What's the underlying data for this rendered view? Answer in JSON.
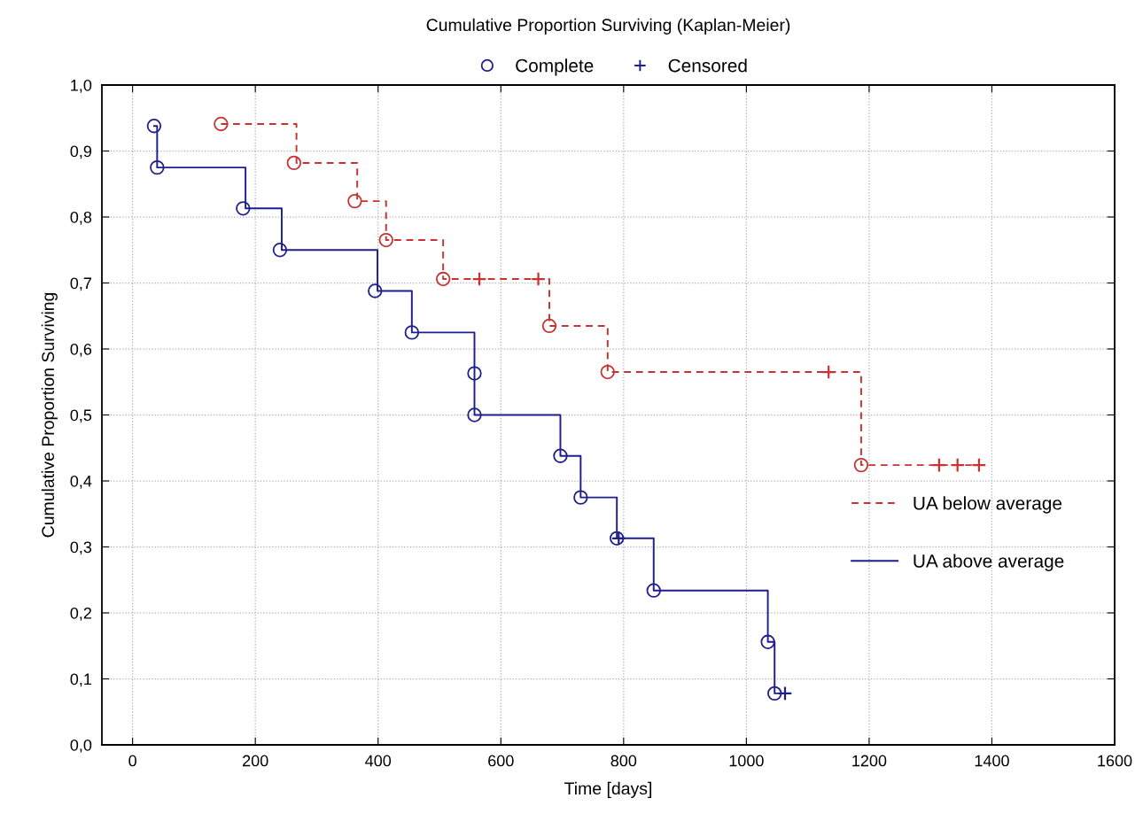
{
  "chart_data": {
    "type": "step",
    "title": "Cumulative Proportion Surviving (Kaplan-Meier)",
    "xlabel": "Time [days]",
    "ylabel": "Cumulative Proportion Surviving",
    "xlim": [
      -50,
      1600
    ],
    "xticks": [
      0,
      200,
      400,
      600,
      800,
      1000,
      1200,
      1400,
      1600
    ],
    "ylim": [
      0,
      1
    ],
    "yticks": [
      {
        "value": 0,
        "label": "0,0"
      },
      {
        "value": 0.1,
        "label": "0,1"
      },
      {
        "value": 0.2,
        "label": "0,2"
      },
      {
        "value": 0.3,
        "label": "0,3"
      },
      {
        "value": 0.4,
        "label": "0,4"
      },
      {
        "value": 0.5,
        "label": "0,5"
      },
      {
        "value": 0.6,
        "label": "0,6"
      },
      {
        "value": 0.7,
        "label": "0,7"
      },
      {
        "value": 0.8,
        "label": "0,8"
      },
      {
        "value": 0.9,
        "label": "0,9"
      },
      {
        "value": 1,
        "label": "1,0"
      }
    ],
    "grid": true,
    "legend": "right",
    "series": [
      {
        "name": "UA below average",
        "color": "#c83232",
        "line_style": "dashed",
        "marker": "none",
        "x": [
          144,
          267,
          366,
          413,
          506,
          679,
          774,
          1187,
          1379
        ],
        "values": [
          0.941,
          0.882,
          0.824,
          0.765,
          0.706,
          0.635,
          0.565,
          0.424,
          0.424
        ]
      },
      {
        "name": "UA above average",
        "color": "#1f1f8c",
        "line_style": "solid",
        "marker": "none",
        "x": [
          35,
          40,
          184,
          243,
          399,
          455,
          557,
          557,
          697,
          730,
          789,
          849,
          1035,
          1046,
          1063
        ],
        "values": [
          0.938,
          0.875,
          0.813,
          0.75,
          0.688,
          0.625,
          0.563,
          0.5,
          0.438,
          0.375,
          0.313,
          0.234,
          0.156,
          0.078,
          0.078
        ]
      },
      {
        "name": "Complete",
        "type": "scatter",
        "color": "#1f1f8c",
        "marker": "circle",
        "x": [
          144,
          263,
          362,
          413,
          506,
          679,
          774,
          1187,
          35,
          40,
          180,
          240,
          395,
          455,
          557,
          557,
          697,
          730,
          789,
          849,
          1035,
          1046
        ],
        "values": [
          0.941,
          0.882,
          0.824,
          0.765,
          0.706,
          0.635,
          0.565,
          0.424,
          0.938,
          0.875,
          0.813,
          0.75,
          0.688,
          0.625,
          0.563,
          0.5,
          0.438,
          0.375,
          0.313,
          0.234,
          0.156,
          0.078
        ],
        "colors": [
          "#c83232",
          "#c83232",
          "#c83232",
          "#c83232",
          "#c83232",
          "#c83232",
          "#c83232",
          "#c83232",
          "#1f1f8c",
          "#1f1f8c",
          "#1f1f8c",
          "#1f1f8c",
          "#1f1f8c",
          "#1f1f8c",
          "#1f1f8c",
          "#1f1f8c",
          "#1f1f8c",
          "#1f1f8c",
          "#1f1f8c",
          "#1f1f8c",
          "#1f1f8c",
          "#1f1f8c"
        ]
      },
      {
        "name": "Censored",
        "type": "scatter",
        "color": "#1f1f8c",
        "marker": "cross",
        "x": [
          565,
          661,
          1134,
          1314,
          1344,
          1379,
          792,
          1063
        ],
        "values": [
          0.706,
          0.706,
          0.565,
          0.424,
          0.424,
          0.424,
          0.313,
          0.078
        ],
        "colors": [
          "#c83232",
          "#c83232",
          "#c83232",
          "#c83232",
          "#c83232",
          "#c83232",
          "#1f1f8c",
          "#1f1f8c"
        ]
      }
    ]
  }
}
